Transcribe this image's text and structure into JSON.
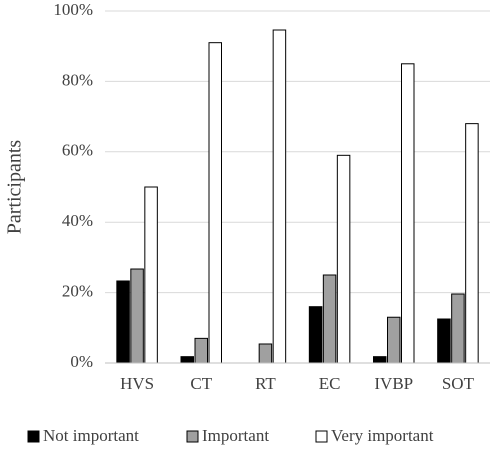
{
  "chart_data": {
    "type": "bar",
    "y_label": "Participants",
    "categories": [
      "HVS",
      "CT",
      "RT",
      "EC",
      "IVBP",
      "SOT"
    ],
    "series": [
      {
        "name": "Not important",
        "color": "#000000",
        "values": [
          23.3,
          1.8,
          0,
          16,
          1.8,
          12.5
        ]
      },
      {
        "name": "Important",
        "color": "#a0a0a0",
        "values": [
          26.7,
          7,
          5.4,
          25,
          13,
          19.6
        ]
      },
      {
        "name": "Very important",
        "color": "#ffffff",
        "values": [
          50,
          91,
          94.6,
          59,
          85,
          68
        ]
      }
    ],
    "ylim": [
      0,
      100
    ],
    "yticks": [
      {
        "value": 0,
        "label": "0%"
      },
      {
        "value": 20,
        "label": "20%"
      },
      {
        "value": 40,
        "label": "40%"
      },
      {
        "value": 60,
        "label": "60%"
      },
      {
        "value": 80,
        "label": "80%"
      },
      {
        "value": 100,
        "label": "100%"
      }
    ],
    "grid": true,
    "legend": "bottom"
  }
}
